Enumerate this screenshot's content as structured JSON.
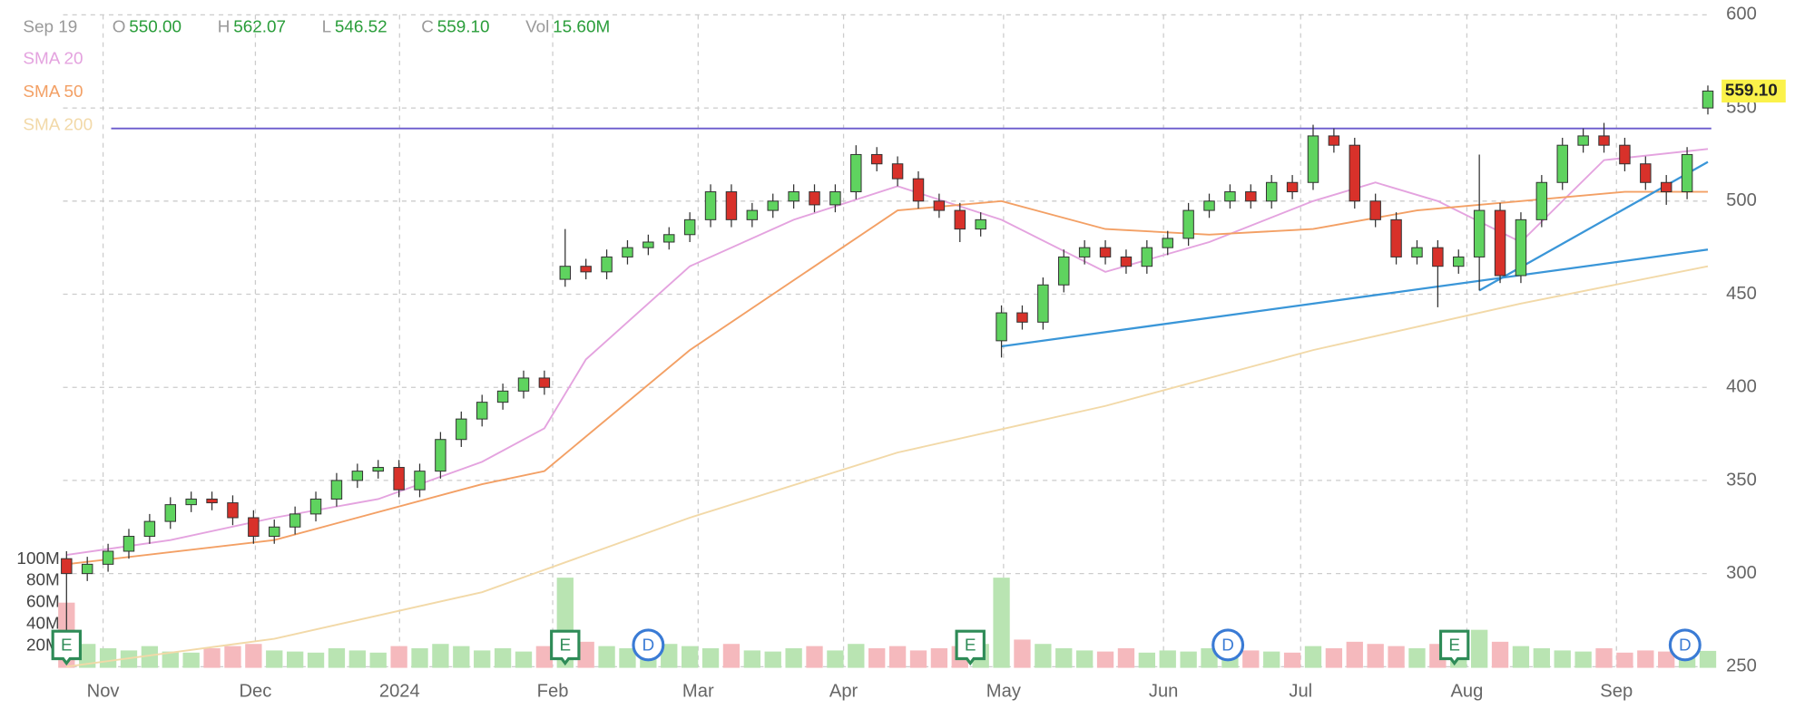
{
  "chart_data": {
    "type": "candlestick",
    "header": {
      "date": "Sep 19",
      "fields": [
        {
          "key": "O",
          "value": "550.00"
        },
        {
          "key": "H",
          "value": "562.07"
        },
        {
          "key": "L",
          "value": "546.52"
        },
        {
          "key": "C",
          "value": "559.10"
        },
        {
          "key": "Vol",
          "value": "15.60M"
        }
      ]
    },
    "categories": [
      null,
      null,
      null,
      null,
      null,
      null,
      null,
      null,
      null,
      null,
      null,
      null,
      null,
      null,
      null,
      null,
      null,
      null,
      null,
      null,
      null,
      null,
      null,
      null,
      null,
      null,
      null,
      null,
      null,
      null,
      null,
      null,
      null,
      null,
      null,
      null,
      null,
      null,
      null,
      null,
      null,
      null,
      null,
      null,
      null,
      null,
      null,
      null,
      null,
      null,
      null,
      null,
      null,
      null,
      null,
      null,
      null,
      null,
      null,
      null,
      null,
      null,
      null,
      null,
      null,
      null,
      null,
      null,
      null,
      null,
      null,
      null,
      null,
      null,
      null,
      null,
      null,
      null,
      null,
      null
    ],
    "candles": {
      "open": [
        308,
        300,
        305,
        312,
        320,
        328,
        337,
        340,
        338,
        330,
        320,
        325,
        332,
        340,
        350,
        355,
        357,
        345,
        355,
        372,
        383,
        392,
        398,
        405,
        458,
        465,
        462,
        470,
        475,
        478,
        482,
        490,
        505,
        490,
        495,
        500,
        505,
        498,
        505,
        525,
        520,
        512,
        500,
        495,
        485,
        425,
        440,
        435,
        455,
        470,
        475,
        470,
        465,
        475,
        480,
        495,
        500,
        505,
        500,
        510,
        510,
        535,
        530,
        500,
        490,
        470,
        475,
        465,
        470,
        495,
        460,
        490,
        510,
        530,
        535,
        530,
        520,
        510,
        505,
        550
      ],
      "high": [
        312,
        309,
        316,
        324,
        332,
        341,
        344,
        344,
        342,
        334,
        329,
        336,
        344,
        354,
        359,
        361,
        361,
        359,
        376,
        387,
        396,
        402,
        409,
        409,
        485,
        469,
        474,
        479,
        482,
        486,
        494,
        509,
        509,
        499,
        504,
        509,
        509,
        509,
        530,
        529,
        524,
        516,
        504,
        499,
        494,
        444,
        444,
        459,
        474,
        479,
        479,
        474,
        479,
        484,
        499,
        504,
        509,
        509,
        514,
        514,
        541,
        539,
        534,
        504,
        494,
        479,
        479,
        474,
        525,
        499,
        494,
        514,
        534,
        539,
        542,
        534,
        524,
        514,
        529,
        562.07
      ],
      "low": [
        265,
        296,
        301,
        308,
        316,
        324,
        333,
        334,
        326,
        316,
        316,
        321,
        328,
        336,
        346,
        351,
        341,
        341,
        351,
        368,
        379,
        388,
        394,
        396,
        454,
        458,
        458,
        466,
        471,
        474,
        478,
        486,
        486,
        486,
        491,
        496,
        494,
        494,
        501,
        516,
        508,
        496,
        491,
        478,
        481,
        416,
        431,
        431,
        451,
        466,
        466,
        461,
        461,
        471,
        476,
        491,
        496,
        496,
        496,
        501,
        506,
        526,
        496,
        486,
        466,
        466,
        443,
        461,
        452,
        456,
        456,
        486,
        506,
        526,
        526,
        516,
        506,
        498,
        501,
        546.52
      ],
      "close": [
        300,
        305,
        312,
        320,
        328,
        337,
        340,
        338,
        330,
        320,
        325,
        332,
        340,
        350,
        355,
        357,
        345,
        355,
        372,
        383,
        392,
        398,
        405,
        400,
        465,
        462,
        470,
        475,
        478,
        482,
        490,
        505,
        490,
        495,
        500,
        505,
        498,
        505,
        525,
        520,
        512,
        500,
        495,
        485,
        490,
        440,
        435,
        455,
        470,
        475,
        470,
        465,
        475,
        480,
        495,
        500,
        505,
        500,
        510,
        505,
        535,
        530,
        500,
        490,
        470,
        475,
        465,
        470,
        495,
        460,
        490,
        510,
        530,
        535,
        530,
        520,
        510,
        505,
        525,
        559.1
      ]
    },
    "last_label": "559.10",
    "up_color": "#5fd35f",
    "down_color": "#d8312a",
    "volume": {
      "values": [
        60,
        22,
        18,
        16,
        20,
        15,
        14,
        18,
        20,
        22,
        16,
        15,
        14,
        18,
        16,
        14,
        20,
        18,
        22,
        20,
        16,
        18,
        15,
        20,
        83,
        24,
        20,
        18,
        16,
        22,
        20,
        18,
        22,
        16,
        15,
        18,
        20,
        16,
        22,
        18,
        20,
        16,
        18,
        20,
        22,
        83,
        26,
        22,
        18,
        16,
        15,
        18,
        14,
        16,
        15,
        18,
        14,
        16,
        15,
        14,
        20,
        18,
        24,
        22,
        20,
        18,
        22,
        16,
        35,
        24,
        20,
        18,
        16,
        15,
        18,
        14,
        16,
        15,
        18,
        15.6
      ],
      "ylim": [
        0,
        100
      ],
      "yticks": [
        {
          "value": 20,
          "label": "20M"
        },
        {
          "value": 40,
          "label": "40M"
        },
        {
          "value": 60,
          "label": "60M"
        },
        {
          "value": 80,
          "label": "80M"
        },
        {
          "value": 100,
          "label": "100M"
        }
      ],
      "up_color": "#b9e4b2",
      "down_color": "#f5b9bd"
    },
    "series": [
      {
        "name": "SMA 20",
        "color": "#e4a3df",
        "x": [
          0,
          5,
          10,
          15,
          20,
          23,
          25,
          30,
          35,
          40,
          45,
          50,
          55,
          60,
          63,
          66,
          70,
          74,
          79
        ],
        "values": [
          310,
          318,
          330,
          340,
          360,
          378,
          415,
          465,
          490,
          508,
          490,
          462,
          478,
          500,
          510,
          500,
          478,
          522,
          528
        ]
      },
      {
        "name": "SMA 50",
        "color": "#f3a065",
        "x": [
          0,
          10,
          20,
          23,
          30,
          40,
          45,
          50,
          55,
          60,
          65,
          70,
          75,
          79
        ],
        "values": [
          305,
          318,
          348,
          355,
          420,
          495,
          500,
          485,
          482,
          485,
          495,
          500,
          505,
          505
        ]
      },
      {
        "name": "SMA 200",
        "color": "#f2d9a8",
        "x": [
          0,
          10,
          20,
          30,
          40,
          50,
          60,
          70,
          79
        ],
        "values": [
          250,
          265,
          290,
          330,
          365,
          390,
          420,
          445,
          465
        ]
      }
    ],
    "drawings": {
      "level": {
        "value": 539,
        "color": "#6a5acd"
      },
      "trendlines": [
        {
          "color": "#3a96d8",
          "x": [
            45,
            79
          ],
          "values": [
            422,
            474
          ]
        },
        {
          "color": "#3a96d8",
          "x": [
            68,
            79
          ],
          "values": [
            452,
            521
          ]
        }
      ]
    },
    "events": [
      {
        "x": 0,
        "label": "E",
        "color": "#2e8b57"
      },
      {
        "x": 24,
        "label": "E",
        "color": "#2e8b57"
      },
      {
        "x": 28,
        "label": "D",
        "color": "#3a7bd5"
      },
      {
        "x": 43.5,
        "label": "E",
        "color": "#2e8b57"
      },
      {
        "x": 55.9,
        "label": "D",
        "color": "#3a7bd5"
      },
      {
        "x": 66.8,
        "label": "E",
        "color": "#2e8b57"
      },
      {
        "x": 77.9,
        "label": "D",
        "color": "#3a7bd5"
      }
    ],
    "xticks": [
      {
        "value": 1.76,
        "label": "Nov"
      },
      {
        "value": 9.09,
        "label": "Dec"
      },
      {
        "value": 16.03,
        "label": "2024"
      },
      {
        "value": 23.4,
        "label": "Feb"
      },
      {
        "value": 30.4,
        "label": "Mar"
      },
      {
        "value": 37.4,
        "label": "Apr"
      },
      {
        "value": 45.1,
        "label": "May"
      },
      {
        "value": 52.8,
        "label": "Jun"
      },
      {
        "value": 59.4,
        "label": "Jul"
      },
      {
        "value": 67.4,
        "label": "Aug"
      },
      {
        "value": 74.6,
        "label": "Sep"
      }
    ],
    "ylim": [
      250,
      600
    ],
    "yticks": [
      250,
      300,
      350,
      400,
      450,
      500,
      550,
      600
    ],
    "grid": true
  }
}
